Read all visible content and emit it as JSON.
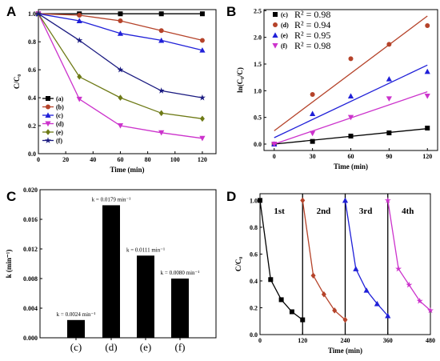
{
  "colors": {
    "a": "#000000",
    "b": "#b5432a",
    "c": "#2020d8",
    "d": "#cc33cc",
    "e": "#6e7a16",
    "f": "#1a1a80"
  },
  "chart_data": [
    {
      "panel": "A",
      "type": "line",
      "xlabel": "Time (min)",
      "ylabel": "C/C₀",
      "xlim": [
        0,
        130
      ],
      "ylim": [
        0,
        1.03
      ],
      "xticks": [
        "0",
        "20",
        "40",
        "60",
        "80",
        "100",
        "120"
      ],
      "yticks": [
        "0.0",
        "0.2",
        "0.4",
        "0.6",
        "0.8",
        "1.0"
      ],
      "x": [
        0,
        30,
        60,
        90,
        120
      ],
      "legend_position": "lower-left",
      "series": [
        {
          "name": "(a)",
          "color": "#000000",
          "marker": "square",
          "values": [
            1.0,
            1.0,
            1.0,
            1.0,
            1.0
          ]
        },
        {
          "name": "(b)",
          "color": "#b5432a",
          "marker": "circle",
          "values": [
            1.0,
            0.99,
            0.95,
            0.88,
            0.81
          ]
        },
        {
          "name": "(c)",
          "color": "#2020d8",
          "marker": "triangle-up",
          "values": [
            1.0,
            0.95,
            0.86,
            0.81,
            0.74
          ]
        },
        {
          "name": "(d)",
          "color": "#cc33cc",
          "marker": "triangle-down",
          "values": [
            1.0,
            0.39,
            0.2,
            0.15,
            0.11
          ]
        },
        {
          "name": "(e)",
          "color": "#6e7a16",
          "marker": "diamond",
          "values": [
            1.0,
            0.55,
            0.4,
            0.29,
            0.25
          ]
        },
        {
          "name": "(f)",
          "color": "#1a1a80",
          "marker": "star",
          "values": [
            1.0,
            0.81,
            0.6,
            0.45,
            0.4
          ]
        }
      ]
    },
    {
      "panel": "B",
      "type": "scatter",
      "xlabel": "Time (min)",
      "ylabel": "ln(C₀/C)",
      "xlim": [
        -8,
        128
      ],
      "ylim": [
        -0.12,
        2.52
      ],
      "xticks": [
        "0",
        "30",
        "60",
        "90",
        "120"
      ],
      "yticks": [
        "0.0",
        "0.5",
        "1.0",
        "1.5",
        "2.0",
        "2.5"
      ],
      "x": [
        0,
        30,
        60,
        90,
        120
      ],
      "legend_position": "top-left",
      "series": [
        {
          "name": "(c)",
          "r2_label": "R² = 0.98",
          "color": "#000000",
          "marker": "square",
          "values": [
            0.0,
            0.05,
            0.15,
            0.21,
            0.3
          ],
          "fit": [
            0.0,
            0.29
          ]
        },
        {
          "name": "(d)",
          "r2_label": "R² = 0.94",
          "color": "#b5432a",
          "marker": "circle",
          "values": [
            0.0,
            0.93,
            1.6,
            1.87,
            2.22
          ],
          "fit": [
            0.25,
            2.4
          ]
        },
        {
          "name": "(e)",
          "r2_label": "R² = 0.95",
          "color": "#2020d8",
          "marker": "triangle-up",
          "values": [
            0.0,
            0.57,
            0.9,
            1.22,
            1.36
          ],
          "fit": [
            0.12,
            1.48
          ]
        },
        {
          "name": "(f)",
          "r2_label": "R² = 0.98",
          "color": "#cc33cc",
          "marker": "triangle-down",
          "values": [
            0.0,
            0.2,
            0.5,
            0.85,
            0.9
          ],
          "fit": [
            0.0,
            0.98
          ]
        }
      ]
    },
    {
      "panel": "C",
      "type": "bar",
      "ylabel": "k (min⁻¹)",
      "ylim": [
        0,
        0.02
      ],
      "yticks": [
        "0.000",
        "0.004",
        "0.008",
        "0.012",
        "0.016",
        "0.020"
      ],
      "categories": [
        "(c)",
        "(d)",
        "(e)",
        "(f)"
      ],
      "values": [
        0.0024,
        0.0179,
        0.0111,
        0.008
      ],
      "labels": [
        "k = 0.0024 min⁻¹",
        "k = 0.0179 min⁻¹",
        "k = 0.0111 min⁻¹",
        "k = 0.0080 min⁻¹"
      ]
    },
    {
      "panel": "D",
      "type": "line",
      "xlabel": "Time (min)",
      "ylabel": "C/C₀",
      "xlim": [
        0,
        480
      ],
      "ylim": [
        0,
        1.05
      ],
      "xticks": [
        "0",
        "120",
        "240",
        "360",
        "480"
      ],
      "yticks": [
        "0.0",
        "0.2",
        "0.4",
        "0.6",
        "0.8",
        "1.0"
      ],
      "separators": [
        120,
        240,
        360
      ],
      "cycle_labels": [
        "1st",
        "2nd",
        "3rd",
        "4th"
      ],
      "series": [
        {
          "name": "1st",
          "color": "#000000",
          "x": [
            0,
            30,
            60,
            90,
            120
          ],
          "values": [
            1.0,
            0.41,
            0.26,
            0.17,
            0.11
          ]
        },
        {
          "name": "2nd",
          "color": "#b5432a",
          "x": [
            120,
            150,
            180,
            210,
            240
          ],
          "values": [
            1.0,
            0.44,
            0.3,
            0.18,
            0.11
          ]
        },
        {
          "name": "3rd",
          "color": "#2020d8",
          "x": [
            240,
            270,
            300,
            330,
            360
          ],
          "values": [
            1.0,
            0.49,
            0.33,
            0.23,
            0.14
          ]
        },
        {
          "name": "4th",
          "color": "#cc33cc",
          "x": [
            360,
            390,
            420,
            450,
            480
          ],
          "values": [
            1.0,
            0.49,
            0.37,
            0.25,
            0.18
          ]
        }
      ]
    }
  ]
}
